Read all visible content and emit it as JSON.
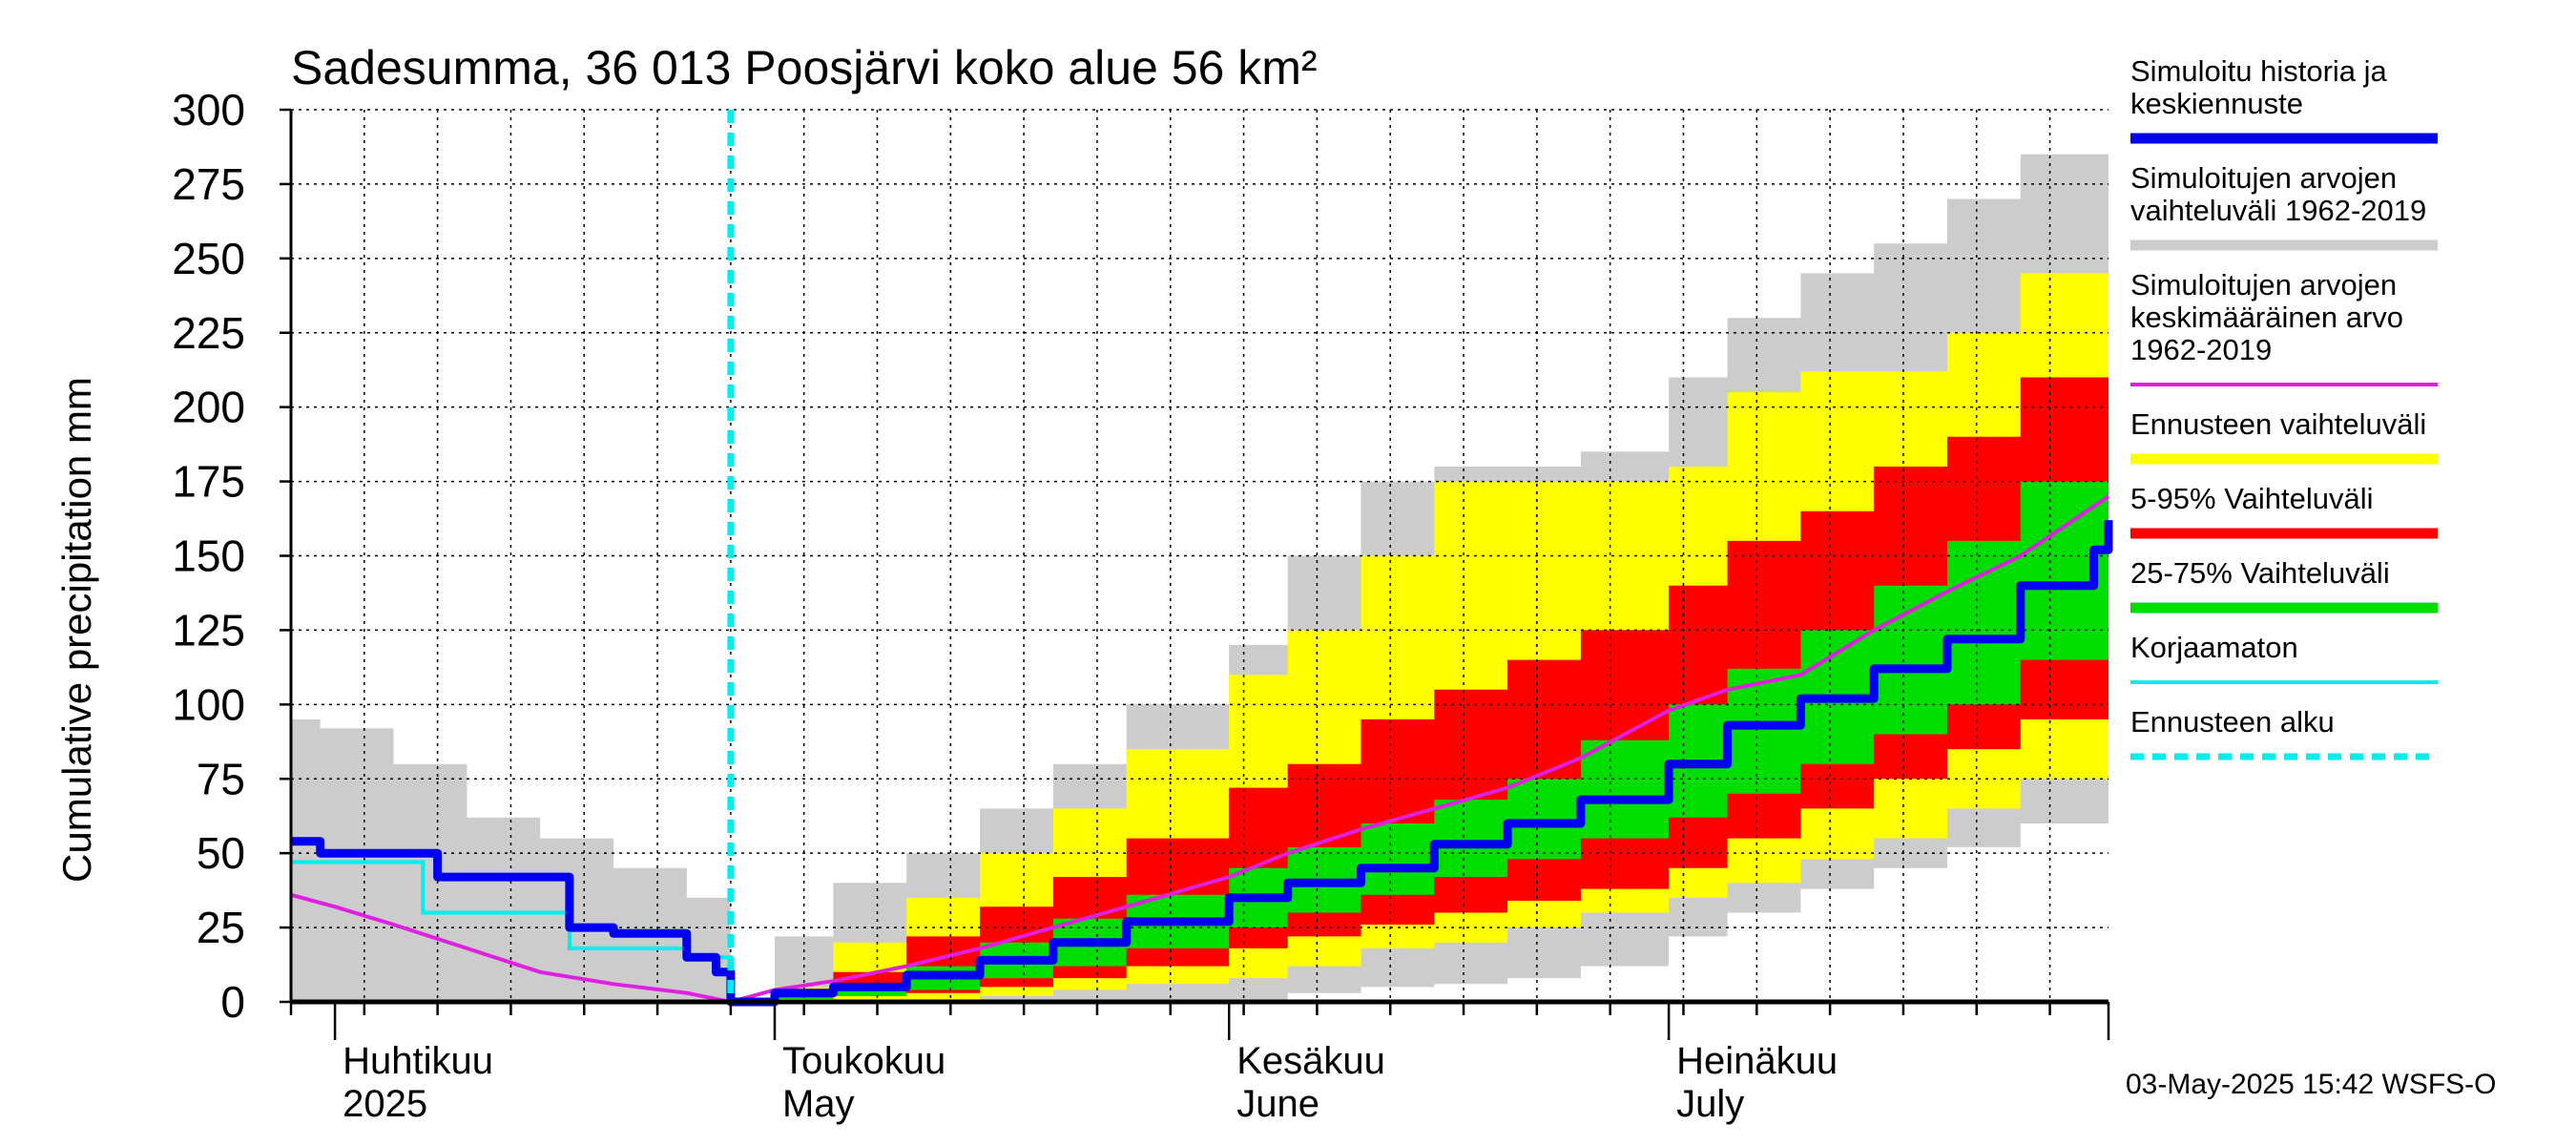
{
  "chart_data": {
    "type": "area",
    "title": "Sadesumma, 36 013 Poosjärvi koko alue 56 km²",
    "ylabel": "Cumulative precipitation   mm",
    "xlabel": "",
    "footer": "03-May-2025 15:42 WSFS-O",
    "ylim": [
      0,
      300
    ],
    "yticks": [
      "0",
      "25",
      "50",
      "75",
      "100",
      "125",
      "150",
      "175",
      "200",
      "225",
      "250",
      "275",
      "300"
    ],
    "xlim": [
      "2025-03-29",
      "2025-07-31"
    ],
    "month_labels": [
      {
        "date": "2025-04-01",
        "line1": "Huhtikuu",
        "line2": "2025"
      },
      {
        "date": "2025-05-01",
        "line1": "Toukokuu",
        "line2": "May"
      },
      {
        "date": "2025-06-01",
        "line1": "Kesäkuu",
        "line2": "June"
      },
      {
        "date": "2025-07-01",
        "line1": "Heinäkuu",
        "line2": "July"
      }
    ],
    "forecast_start": "2025-04-28",
    "grid": true,
    "legend_position": "right",
    "legend": [
      {
        "key": "sim",
        "lines": [
          "Simuloitu historia ja",
          "keskiennuste"
        ],
        "color": "#0000ee",
        "style": "thick"
      },
      {
        "key": "hist_range",
        "lines": [
          "Simuloitujen arvojen",
          "vaihteluväli 1962-2019"
        ],
        "color": "#cccccc",
        "style": "thick"
      },
      {
        "key": "hist_mean",
        "lines": [
          "Simuloitujen arvojen",
          "keskimääräinen arvo",
          "   1962-2019"
        ],
        "color": "#e020e0",
        "style": "thin"
      },
      {
        "key": "fc_range",
        "lines": [
          "Ennusteen vaihteluväli"
        ],
        "color": "#ffff00",
        "style": "thick"
      },
      {
        "key": "p5_95",
        "lines": [
          "5-95% Vaihteluväli"
        ],
        "color": "#ff0000",
        "style": "thick"
      },
      {
        "key": "p25_75",
        "lines": [
          "25-75% Vaihteluväli"
        ],
        "color": "#00dd00",
        "style": "thick"
      },
      {
        "key": "uncorrected",
        "lines": [
          "Korjaamaton"
        ],
        "color": "#00eeee",
        "style": "thin"
      },
      {
        "key": "fc_start",
        "lines": [
          "Ennusteen alku"
        ],
        "color": "#00eeee",
        "style": "dashed"
      }
    ],
    "colors": {
      "hist_range": "#cccccc",
      "fc_range": "#ffff00",
      "p5_95": "#ff0000",
      "p25_75": "#00dd00",
      "sim": "#0000ee",
      "hist_mean": "#e020e0",
      "uncorrected": "#00eeee"
    },
    "series": {
      "hist_range": {
        "x": [
          "2025-03-29",
          "2025-03-31",
          "2025-04-05",
          "2025-04-10",
          "2025-04-15",
          "2025-04-20",
          "2025-04-25",
          "2025-04-28",
          "2025-05-01",
          "2025-05-05",
          "2025-05-10",
          "2025-05-15",
          "2025-05-20",
          "2025-05-25",
          "2025-06-01",
          "2025-06-05",
          "2025-06-10",
          "2025-06-15",
          "2025-06-20",
          "2025-06-25",
          "2025-07-01",
          "2025-07-05",
          "2025-07-10",
          "2025-07-15",
          "2025-07-20",
          "2025-07-25",
          "2025-07-31"
        ],
        "lo": [
          0,
          0,
          0,
          0,
          0,
          0,
          0,
          0,
          0,
          0,
          0,
          0,
          0,
          0,
          0,
          3,
          5,
          6,
          8,
          12,
          22,
          30,
          38,
          45,
          52,
          60,
          70
        ],
        "hi": [
          95,
          92,
          80,
          62,
          55,
          45,
          35,
          0,
          22,
          40,
          50,
          65,
          80,
          100,
          120,
          150,
          175,
          180,
          180,
          185,
          210,
          230,
          245,
          255,
          270,
          285,
          300
        ]
      },
      "fc_range": {
        "x": [
          "2025-04-28",
          "2025-05-01",
          "2025-05-05",
          "2025-05-10",
          "2025-05-15",
          "2025-05-20",
          "2025-05-25",
          "2025-06-01",
          "2025-06-05",
          "2025-06-10",
          "2025-06-15",
          "2025-06-20",
          "2025-06-25",
          "2025-07-01",
          "2025-07-05",
          "2025-07-10",
          "2025-07-15",
          "2025-07-20",
          "2025-07-25",
          "2025-07-31"
        ],
        "lo": [
          0,
          0,
          0,
          0,
          2,
          4,
          6,
          8,
          12,
          18,
          20,
          25,
          30,
          35,
          40,
          48,
          55,
          65,
          75,
          90
        ],
        "hi": [
          0,
          5,
          20,
          35,
          50,
          65,
          85,
          110,
          125,
          150,
          175,
          175,
          175,
          180,
          205,
          212,
          212,
          225,
          245,
          260
        ]
      },
      "p5_95": {
        "x": [
          "2025-04-28",
          "2025-05-01",
          "2025-05-05",
          "2025-05-10",
          "2025-05-15",
          "2025-05-20",
          "2025-05-25",
          "2025-06-01",
          "2025-06-05",
          "2025-06-10",
          "2025-06-15",
          "2025-06-20",
          "2025-06-25",
          "2025-07-01",
          "2025-07-05",
          "2025-07-10",
          "2025-07-15",
          "2025-07-20",
          "2025-07-25",
          "2025-07-31"
        ],
        "lo": [
          0,
          1,
          2,
          3,
          5,
          8,
          12,
          18,
          22,
          26,
          30,
          34,
          38,
          45,
          55,
          65,
          75,
          85,
          95,
          110
        ],
        "hi": [
          0,
          3,
          10,
          22,
          32,
          42,
          55,
          72,
          80,
          95,
          105,
          115,
          125,
          140,
          155,
          165,
          180,
          190,
          210,
          240
        ]
      },
      "p25_75": {
        "x": [
          "2025-04-28",
          "2025-05-01",
          "2025-05-05",
          "2025-05-10",
          "2025-05-15",
          "2025-05-20",
          "2025-05-25",
          "2025-06-01",
          "2025-06-05",
          "2025-06-10",
          "2025-06-15",
          "2025-06-20",
          "2025-06-25",
          "2025-07-01",
          "2025-07-05",
          "2025-07-10",
          "2025-07-15",
          "2025-07-20",
          "2025-07-25",
          "2025-07-31"
        ],
        "lo": [
          0,
          1,
          2,
          4,
          8,
          12,
          18,
          25,
          30,
          36,
          42,
          48,
          55,
          62,
          70,
          80,
          90,
          100,
          115,
          130
        ],
        "hi": [
          0,
          2,
          5,
          12,
          20,
          28,
          36,
          45,
          52,
          60,
          68,
          75,
          88,
          100,
          112,
          125,
          140,
          155,
          175,
          198
        ]
      },
      "sim": {
        "x": [
          "2025-03-29",
          "2025-03-31",
          "2025-04-06",
          "2025-04-08",
          "2025-04-15",
          "2025-04-17",
          "2025-04-20",
          "2025-04-25",
          "2025-04-27",
          "2025-04-28",
          "2025-05-01",
          "2025-05-05",
          "2025-05-10",
          "2025-05-15",
          "2025-05-20",
          "2025-05-25",
          "2025-06-01",
          "2025-06-05",
          "2025-06-10",
          "2025-06-15",
          "2025-06-20",
          "2025-06-25",
          "2025-07-01",
          "2025-07-05",
          "2025-07-10",
          "2025-07-15",
          "2025-07-20",
          "2025-07-25",
          "2025-07-30",
          "2025-07-31"
        ],
        "y": [
          54,
          50,
          50,
          42,
          42,
          25,
          23,
          15,
          10,
          0,
          3,
          5,
          9,
          14,
          20,
          27,
          35,
          40,
          45,
          53,
          60,
          68,
          80,
          93,
          102,
          112,
          122,
          140,
          152,
          162
        ]
      },
      "hist_mean": {
        "x": [
          "2025-03-29",
          "2025-04-01",
          "2025-04-05",
          "2025-04-10",
          "2025-04-15",
          "2025-04-20",
          "2025-04-25",
          "2025-04-28",
          "2025-05-01",
          "2025-05-05",
          "2025-05-10",
          "2025-05-15",
          "2025-05-20",
          "2025-05-25",
          "2025-06-01",
          "2025-06-05",
          "2025-06-10",
          "2025-06-15",
          "2025-06-20",
          "2025-06-25",
          "2025-07-01",
          "2025-07-05",
          "2025-07-10",
          "2025-07-15",
          "2025-07-20",
          "2025-07-25",
          "2025-07-31"
        ],
        "y": [
          36,
          32,
          26,
          18,
          10,
          6,
          3,
          0,
          4,
          7,
          12,
          18,
          25,
          32,
          42,
          50,
          58,
          65,
          72,
          82,
          98,
          105,
          110,
          125,
          138,
          150,
          170
        ]
      },
      "uncorrected": {
        "x": [
          "2025-03-29",
          "2025-04-05",
          "2025-04-07",
          "2025-04-15",
          "2025-04-17",
          "2025-04-25",
          "2025-04-28"
        ],
        "y": [
          47,
          47,
          30,
          30,
          18,
          15,
          0
        ]
      }
    }
  }
}
